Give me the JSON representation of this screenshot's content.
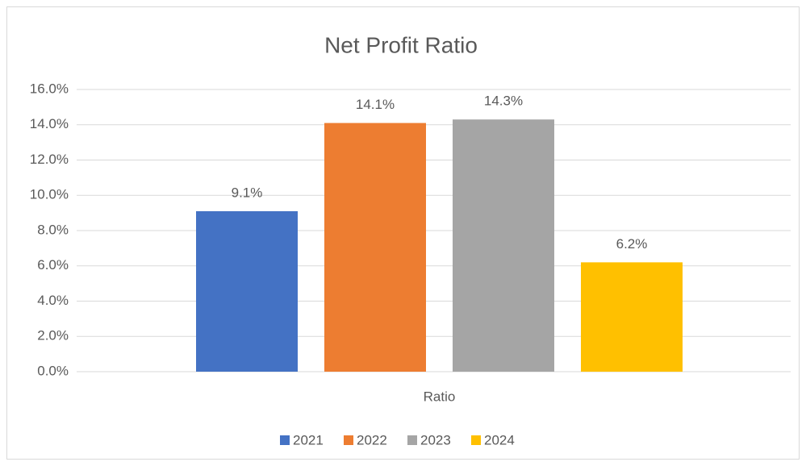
{
  "chart_data": {
    "type": "bar",
    "title": "Net Profit Ratio",
    "categories": [
      "Ratio"
    ],
    "series": [
      {
        "name": "2021",
        "color": "#4472c4",
        "values": [
          9.1
        ],
        "value_labels": [
          "9.1%"
        ]
      },
      {
        "name": "2022",
        "color": "#ed7d31",
        "values": [
          14.1
        ],
        "value_labels": [
          "14.1%"
        ]
      },
      {
        "name": "2023",
        "color": "#a5a5a5",
        "values": [
          14.3
        ],
        "value_labels": [
          "14.3%"
        ]
      },
      {
        "name": "2024",
        "color": "#ffc000",
        "values": [
          6.2
        ],
        "value_labels": [
          "6.2%"
        ]
      }
    ],
    "ylim": [
      0,
      16
    ],
    "yticks": [
      {
        "value": 0,
        "label": "0.0%"
      },
      {
        "value": 2,
        "label": "2.0%"
      },
      {
        "value": 4,
        "label": "4.0%"
      },
      {
        "value": 6,
        "label": "6.0%"
      },
      {
        "value": 8,
        "label": "8.0%"
      },
      {
        "value": 10,
        "label": "10.0%"
      },
      {
        "value": 12,
        "label": "12.0%"
      },
      {
        "value": 14,
        "label": "14.0%"
      },
      {
        "value": 16,
        "label": "16.0%"
      }
    ],
    "grid": true,
    "legend": "bottom"
  }
}
